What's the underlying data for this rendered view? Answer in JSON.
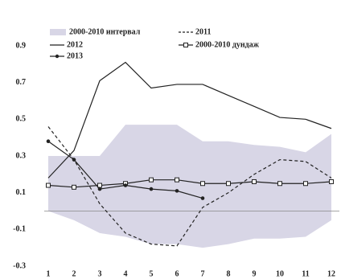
{
  "chart_data": {
    "type": "line",
    "x": [
      1,
      2,
      3,
      4,
      5,
      6,
      7,
      8,
      9,
      10,
      11,
      12
    ],
    "xlim": [
      1,
      12
    ],
    "xticks": [
      1,
      2,
      3,
      4,
      5,
      6,
      7,
      8,
      9,
      10,
      11,
      12
    ],
    "ylim": [
      -0.3,
      0.9
    ],
    "yticks": [
      0.9,
      0.7,
      0.5,
      0.3,
      0.1,
      -0.1,
      -0.3
    ],
    "band": {
      "name": "2000-2010 интервал",
      "color": "#d8d6e6",
      "high": [
        0.3,
        0.3,
        0.3,
        0.47,
        0.47,
        0.47,
        0.38,
        0.38,
        0.36,
        0.35,
        0.32,
        0.42
      ],
      "low": [
        0.0,
        -0.05,
        -0.12,
        -0.14,
        -0.18,
        -0.18,
        -0.2,
        -0.18,
        -0.15,
        -0.15,
        -0.14,
        -0.05
      ]
    },
    "series": [
      {
        "name": "2011",
        "color": "#222",
        "dash": true,
        "marker": "none",
        "values": [
          0.46,
          0.28,
          0.04,
          -0.12,
          -0.18,
          -0.19,
          0.02,
          0.1,
          0.2,
          0.28,
          0.27,
          0.18
        ]
      },
      {
        "name": "2012",
        "color": "#222",
        "dash": false,
        "marker": "none",
        "values": [
          0.18,
          0.33,
          0.71,
          0.81,
          0.67,
          0.69,
          0.69,
          0.63,
          0.57,
          0.51,
          0.5,
          0.45
        ]
      },
      {
        "name": "2000-2010 дундаж",
        "color": "#222",
        "dash": false,
        "marker": "square",
        "values": [
          0.14,
          0.13,
          0.14,
          0.15,
          0.17,
          0.17,
          0.15,
          0.15,
          0.16,
          0.15,
          0.15,
          0.16
        ]
      },
      {
        "name": "2013",
        "color": "#222",
        "dash": false,
        "marker": "dot",
        "values": [
          0.38,
          0.28,
          0.12,
          0.14,
          0.12,
          0.11,
          0.07,
          null,
          null,
          null,
          null,
          null
        ]
      }
    ]
  }
}
